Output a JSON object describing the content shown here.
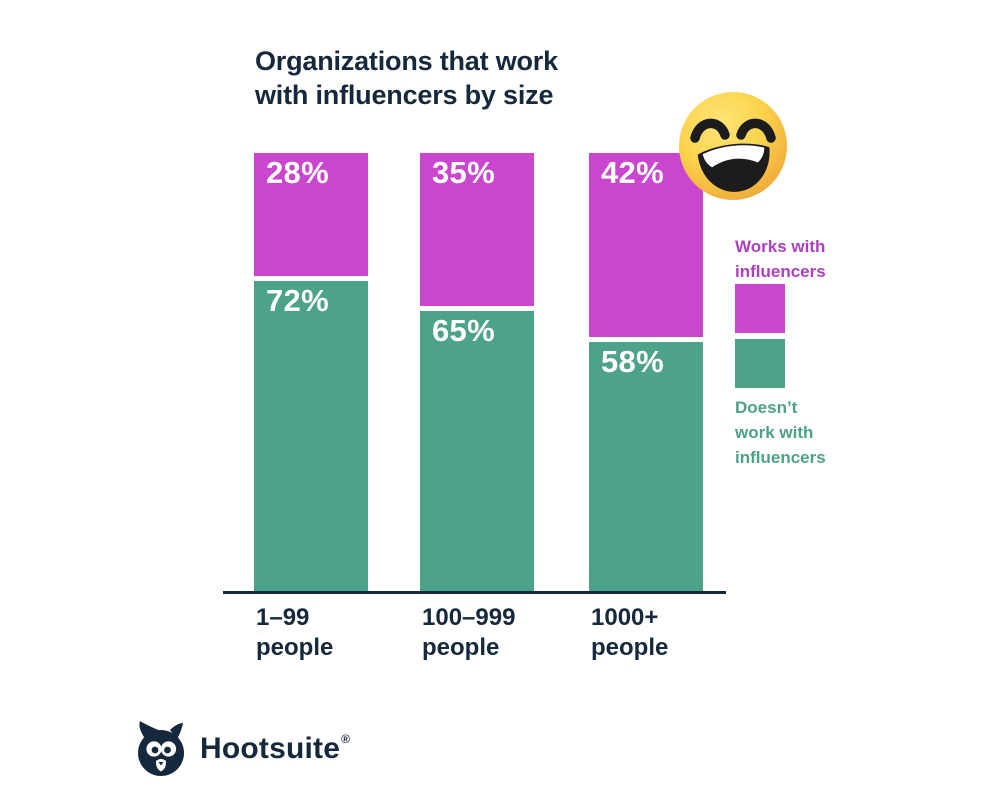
{
  "title_lines": [
    "Organizations that work",
    "with influencers by size"
  ],
  "chart_data": {
    "type": "bar",
    "stacked": true,
    "title": "Organizations that work with influencers by size",
    "categories": [
      "1–99\npeople",
      "100–999\npeople",
      "1000+\npeople"
    ],
    "series": [
      {
        "name": "Works with influencers",
        "color": "#CA46CE",
        "values": [
          28,
          35,
          42
        ]
      },
      {
        "name": "Doesn’t work with influencers",
        "color": "#4DA28A",
        "values": [
          72,
          65,
          58
        ]
      }
    ],
    "value_label_suffix": "%",
    "ylim": [
      0,
      100
    ],
    "grid": false,
    "legend_position": "right",
    "value_labels_color": "#FFFFFF"
  },
  "legend": {
    "works": {
      "label": "Works with\ninfluencers",
      "color": "#AE3EC2"
    },
    "doesnt": {
      "label": "Doesn’t\nwork with\ninfluencers",
      "color": "#4DA28A"
    }
  },
  "emoji": {
    "name": "grinning face with smiling eyes",
    "char": "😄"
  },
  "brand": {
    "name": "Hootsuite",
    "registered": "®"
  },
  "colors": {
    "title": "#16293C",
    "axis": "#16293C",
    "background": "#FFFFFF"
  }
}
